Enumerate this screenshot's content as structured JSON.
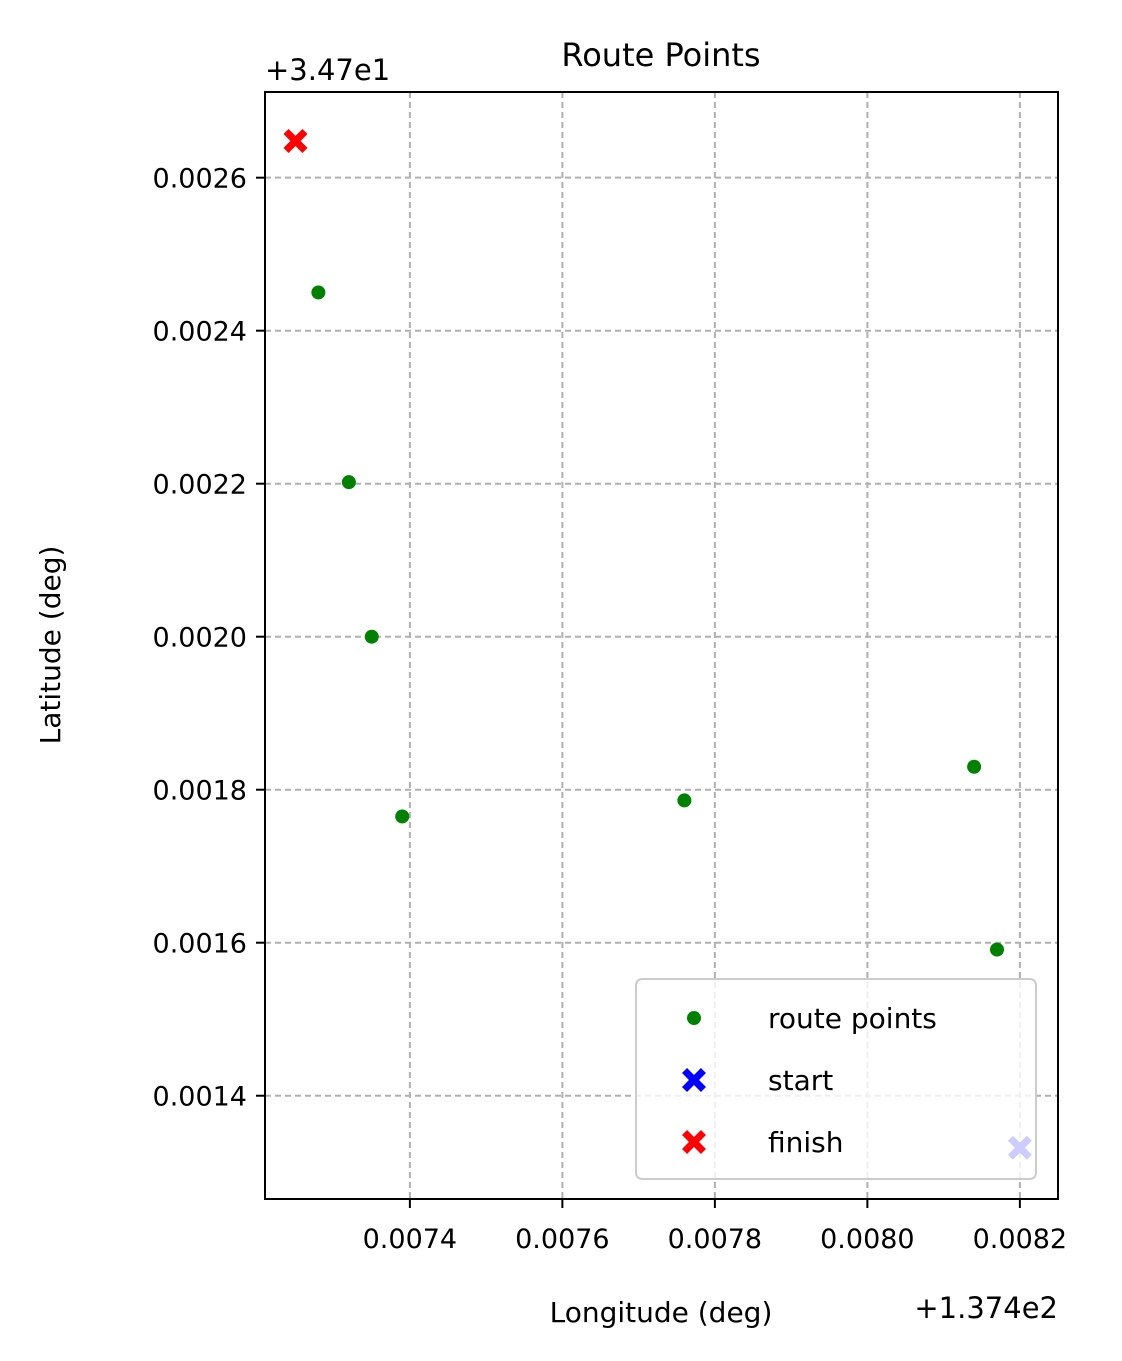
{
  "chart_data": {
    "type": "scatter",
    "title": "Route Points",
    "xlabel": "Longitude (deg)",
    "ylabel": "Latitude (deg)",
    "x_offset_label": "+1.374e2",
    "y_offset_label": "+3.47e1",
    "x_offset": 137.4,
    "y_offset": 34.7,
    "xlim": [
      0.00721,
      0.00825
    ],
    "ylim": [
      0.001265,
      0.002712
    ],
    "x_ticks": [
      {
        "value": 0.0074,
        "label": "0.0074"
      },
      {
        "value": 0.0076,
        "label": "0.0076"
      },
      {
        "value": 0.0078,
        "label": "0.0078"
      },
      {
        "value": 0.008,
        "label": "0.0080"
      },
      {
        "value": 0.0082,
        "label": "0.0082"
      }
    ],
    "y_ticks": [
      {
        "value": 0.0014,
        "label": "0.0014"
      },
      {
        "value": 0.0016,
        "label": "0.0016"
      },
      {
        "value": 0.0018,
        "label": "0.0018"
      },
      {
        "value": 0.002,
        "label": "0.0020"
      },
      {
        "value": 0.0022,
        "label": "0.0022"
      },
      {
        "value": 0.0024,
        "label": "0.0024"
      },
      {
        "value": 0.0026,
        "label": "0.0026"
      }
    ],
    "grid": true,
    "grid_style": "dashed",
    "legend_position": "lower-right",
    "series": [
      {
        "name": "route points",
        "marker": "dot",
        "color": "#008000",
        "x": [
          0.00728,
          0.00732,
          0.00735,
          0.00739,
          0.00776,
          0.00814,
          0.00817
        ],
        "y": [
          0.00245,
          0.002202,
          0.002,
          0.001765,
          0.001786,
          0.00183,
          0.001591
        ]
      },
      {
        "name": "start",
        "marker": "x-filled",
        "color": "#0000ff",
        "x": [
          0.0082
        ],
        "y": [
          0.001332
        ]
      },
      {
        "name": "finish",
        "marker": "x-filled",
        "color": "#ff0000",
        "x": [
          0.00725
        ],
        "y": [
          0.002648
        ]
      }
    ],
    "colors": {
      "grid": "#b0b0b0",
      "axes": "#000000",
      "legend_border": "#cccccc"
    }
  }
}
